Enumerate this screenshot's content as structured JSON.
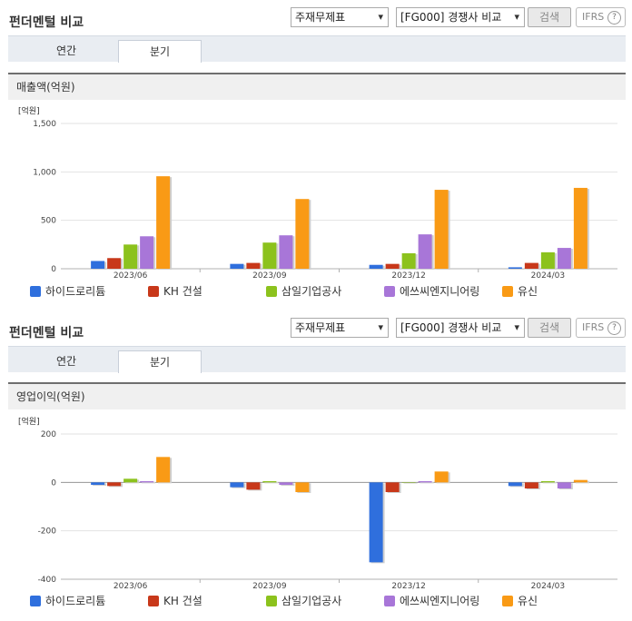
{
  "header": {
    "title": "펀더멘털 비교",
    "select_statement": "주재무제표",
    "select_compare": "[FG000] 경쟁사 비교",
    "search_label": "검색",
    "ifrs_label": "IFRS",
    "help_symbol": "?"
  },
  "tabs": [
    {
      "label": "연간",
      "active": false
    },
    {
      "label": "분기",
      "active": true
    }
  ],
  "colors": {
    "series": [
      "#2f6fdd",
      "#c8381a",
      "#8cc21d",
      "#a876d8",
      "#f99a15"
    ],
    "gridline": "#e2e2e2",
    "axis": "#b0b0b0"
  },
  "chart_data": [
    {
      "type": "bar",
      "title": "매출액(억원)",
      "unit_label": "[억원]",
      "categories": [
        "2023/06",
        "2023/09",
        "2023/12",
        "2024/03"
      ],
      "yticks": [
        "1,500",
        "1,000",
        "500",
        "0"
      ],
      "ylim": [
        0,
        1500
      ],
      "grid": true,
      "legend_position": "bottom",
      "series": [
        {
          "name": "하이드로리튬",
          "values": [
            80,
            50,
            40,
            15
          ]
        },
        {
          "name": "KH 건설",
          "values": [
            110,
            60,
            50,
            60
          ]
        },
        {
          "name": "삼일기업공사",
          "values": [
            250,
            270,
            160,
            170
          ]
        },
        {
          "name": "에쓰씨엔지니어링",
          "values": [
            335,
            345,
            355,
            215
          ]
        },
        {
          "name": "유신",
          "values": [
            955,
            720,
            815,
            835
          ]
        }
      ]
    },
    {
      "type": "bar",
      "title": "영업이익(억원)",
      "unit_label": "[억원]",
      "categories": [
        "2023/06",
        "2023/09",
        "2023/12",
        "2024/03"
      ],
      "yticks": [
        "200",
        "0",
        "-200",
        "-400"
      ],
      "ylim": [
        -400,
        200
      ],
      "grid": true,
      "legend_position": "bottom",
      "series": [
        {
          "name": "하이드로리튬",
          "values": [
            -10,
            -20,
            -330,
            -15
          ]
        },
        {
          "name": "KH 건설",
          "values": [
            -15,
            -30,
            -40,
            -25
          ]
        },
        {
          "name": "삼일기업공사",
          "values": [
            15,
            5,
            0,
            5
          ]
        },
        {
          "name": "에쓰씨엔지니어링",
          "values": [
            5,
            -10,
            5,
            -25
          ]
        },
        {
          "name": "유신",
          "values": [
            105,
            -40,
            45,
            10
          ]
        }
      ]
    }
  ]
}
